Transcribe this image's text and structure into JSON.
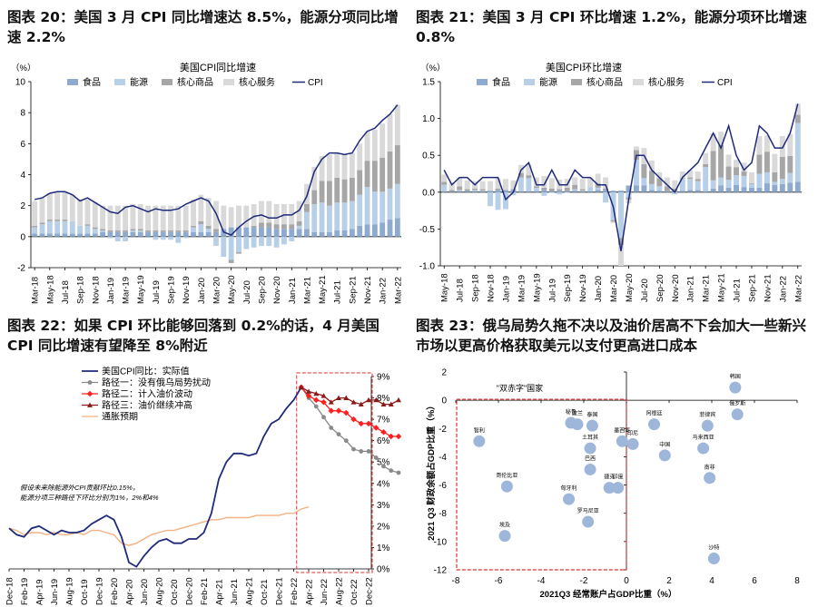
{
  "colors": {
    "food": "#8EAACF",
    "energy": "#B8CFE8",
    "core_goods": "#A6A6A6",
    "core_services": "#D9D9D9",
    "cpi": "#1F2A7A",
    "path1": "#8A8A8A",
    "path2": "#FF1F1F",
    "path3": "#8B1A1A",
    "expect": "#F4B183",
    "highlight": "#E03030",
    "dot": "#9DB6D9"
  },
  "months_a": [
    "Mar-18",
    "Apr-18",
    "May-18",
    "Jun-18",
    "Jul-18",
    "Aug-18",
    "Sep-18",
    "Oct-18",
    "Nov-18",
    "Dec-18",
    "Jan-19",
    "Feb-19",
    "Mar-19",
    "Apr-19",
    "May-19",
    "Jun-19",
    "Jul-19",
    "Aug-19",
    "Sep-19",
    "Oct-19",
    "Nov-19",
    "Dec-19",
    "Jan-20",
    "Feb-20",
    "Mar-20",
    "Apr-20",
    "May-20",
    "Jun-20",
    "Jul-20",
    "Aug-20",
    "Sep-20",
    "Oct-20",
    "Nov-20",
    "Dec-20",
    "Jan-21",
    "Feb-21",
    "Mar-21",
    "Apr-21",
    "May-21",
    "Jun-21",
    "Jul-21",
    "Aug-21",
    "Sep-21",
    "Oct-21",
    "Nov-21",
    "Dec-21",
    "Jan-22",
    "Feb-22",
    "Mar-22"
  ],
  "months_b": [
    "May-18",
    "Jun-18",
    "Jul-18",
    "Aug-18",
    "Sep-18",
    "Oct-18",
    "Nov-18",
    "Dec-18",
    "Jan-19",
    "Feb-19",
    "Mar-19",
    "Apr-19",
    "May-19",
    "Jun-19",
    "Jul-19",
    "Aug-19",
    "Sep-19",
    "Oct-19",
    "Nov-19",
    "Dec-19",
    "Jan-20",
    "Feb-20",
    "Mar-20",
    "Apr-20",
    "May-20",
    "Jun-20",
    "Jul-20",
    "Aug-20",
    "Sep-20",
    "Oct-20",
    "Nov-20",
    "Dec-20",
    "Jan-21",
    "Feb-21",
    "Mar-21",
    "Apr-21",
    "May-21",
    "Jun-21",
    "Jul-21",
    "Aug-21",
    "Sep-21",
    "Oct-21",
    "Nov-21",
    "Dec-21",
    "Jan-22",
    "Feb-22",
    "Mar-22"
  ],
  "months_c": [
    "Dec-18",
    "Jan-19",
    "Feb-19",
    "Mar-19",
    "Apr-19",
    "May-19",
    "Jun-19",
    "Jul-19",
    "Aug-19",
    "Sep-19",
    "Oct-19",
    "Nov-19",
    "Dec-19",
    "Jan-20",
    "Feb-20",
    "Mar-20",
    "Apr-20",
    "May-20",
    "Jun-20",
    "Jul-20",
    "Aug-20",
    "Sep-20",
    "Oct-20",
    "Nov-20",
    "Dec-20",
    "Jan-21",
    "Feb-21",
    "Mar-21",
    "Apr-21",
    "May-21",
    "Jun-21",
    "Jul-21",
    "Aug-21",
    "Sep-21",
    "Oct-21",
    "Nov-21",
    "Dec-21",
    "Jan-22",
    "Feb-22",
    "Mar-22",
    "Apr-22",
    "May-22",
    "Jun-22",
    "Jul-22",
    "Aug-22",
    "Sep-22",
    "Oct-22",
    "Nov-22",
    "Dec-22"
  ],
  "chart_data": [
    {
      "type": "bar",
      "id": "fig20",
      "fig_title": "图表 20：美国 3 月 CPI 同比增速达 8.5%，能源分项同比增速 2.2%",
      "title": "美国CPI同比增速",
      "unit": "（%）",
      "ylim": [
        -2,
        10
      ],
      "yticks": [
        -2,
        0,
        2,
        4,
        6,
        8,
        10
      ],
      "x_tick_labels": [
        "Mar-18",
        "May-18",
        "Jul-18",
        "Sep-18",
        "Nov-18",
        "Jan-19",
        "Mar-19",
        "May-19",
        "Jul-19",
        "Sep-19",
        "Nov-19",
        "Jan-20",
        "Mar-20",
        "May-20",
        "Jul-20",
        "Sep-20",
        "Nov-20",
        "Jan-21",
        "Mar-21",
        "May-21",
        "Jul-21",
        "Sep-21",
        "Nov-21",
        "Jan-22",
        "Mar-22"
      ],
      "legend": [
        "食品",
        "能源",
        "核心商品",
        "核心服务",
        "CPI"
      ],
      "series": [
        {
          "name": "食品",
          "values": [
            0.2,
            0.2,
            0.2,
            0.2,
            0.2,
            0.2,
            0.2,
            0.2,
            0.2,
            0.3,
            0.3,
            0.3,
            0.3,
            0.3,
            0.3,
            0.3,
            0.3,
            0.3,
            0.3,
            0.3,
            0.3,
            0.3,
            0.3,
            0.3,
            0.3,
            0.5,
            0.6,
            0.6,
            0.6,
            0.6,
            0.6,
            0.6,
            0.5,
            0.5,
            0.5,
            0.5,
            0.5,
            0.3,
            0.3,
            0.3,
            0.4,
            0.4,
            0.5,
            0.7,
            0.8,
            0.8,
            0.9,
            1.1,
            1.2
          ]
        },
        {
          "name": "能源",
          "values": [
            0.4,
            0.6,
            0.8,
            0.8,
            0.8,
            0.8,
            0.5,
            0.5,
            0.3,
            0.1,
            -0.1,
            -0.3,
            -0.3,
            0.1,
            0.1,
            0.0,
            -0.2,
            -0.2,
            -0.2,
            -0.4,
            -0.1,
            0.3,
            0.5,
            0.2,
            -0.6,
            -1.3,
            -1.5,
            -1.0,
            -0.8,
            -0.7,
            -0.6,
            -0.6,
            -0.7,
            -0.5,
            -0.3,
            0.2,
            1.1,
            1.8,
            1.9,
            1.7,
            1.8,
            1.8,
            1.8,
            2.0,
            2.4,
            2.1,
            2.0,
            2.0,
            2.2
          ]
        },
        {
          "name": "核心商品",
          "values": [
            0.1,
            0.1,
            0.1,
            0.1,
            0.1,
            0.0,
            0.0,
            0.1,
            0.1,
            0.1,
            0.1,
            0.1,
            0.1,
            0.1,
            0.1,
            0.1,
            0.1,
            0.1,
            0.1,
            0.1,
            0.1,
            0.1,
            0.2,
            0.2,
            0.2,
            0.0,
            -0.2,
            -0.1,
            0.0,
            0.1,
            0.3,
            0.3,
            0.3,
            0.3,
            0.3,
            0.3,
            0.5,
            0.9,
            1.4,
            1.6,
            1.6,
            1.5,
            1.5,
            1.6,
            1.7,
            2.0,
            2.2,
            2.4,
            2.5
          ]
        },
        {
          "name": "核心服务",
          "values": [
            1.6,
            1.6,
            1.7,
            1.8,
            1.8,
            1.7,
            1.7,
            1.6,
            1.6,
            1.5,
            1.6,
            1.6,
            1.6,
            1.6,
            1.6,
            1.6,
            1.6,
            1.6,
            1.6,
            1.6,
            1.6,
            1.7,
            1.7,
            1.8,
            1.8,
            1.5,
            1.3,
            1.4,
            1.4,
            1.4,
            1.4,
            1.4,
            1.3,
            1.3,
            1.3,
            1.3,
            1.3,
            1.5,
            1.6,
            1.7,
            1.6,
            1.6,
            1.6,
            1.7,
            1.9,
            2.0,
            2.2,
            2.4,
            2.6
          ]
        },
        {
          "name": "CPI",
          "values": [
            2.4,
            2.5,
            2.8,
            2.9,
            2.9,
            2.7,
            2.3,
            2.5,
            2.2,
            1.9,
            1.6,
            1.5,
            1.9,
            2.0,
            1.8,
            1.6,
            1.8,
            1.7,
            1.7,
            1.8,
            2.1,
            2.3,
            2.5,
            2.3,
            1.5,
            0.3,
            0.1,
            0.6,
            1.0,
            1.3,
            1.4,
            1.2,
            1.2,
            1.4,
            1.4,
            1.7,
            2.6,
            4.2,
            5.0,
            5.4,
            5.4,
            5.3,
            5.4,
            6.2,
            6.8,
            7.0,
            7.5,
            7.9,
            8.5
          ]
        }
      ]
    },
    {
      "type": "bar",
      "id": "fig21",
      "fig_title": "图表 21：美国 3 月 CPI 环比增速 1.2%，能源分项环比增速 0.8%",
      "title": "美国CPI环比增速",
      "unit": "（%）",
      "ylim": [
        -1.0,
        1.5
      ],
      "yticks": [
        -1.0,
        -0.5,
        0.0,
        0.5,
        1.0,
        1.5
      ],
      "x_tick_labels": [
        "May-18",
        "Jul-18",
        "Sep-18",
        "Nov-18",
        "Jan-19",
        "Mar-19",
        "May-19",
        "Jul-19",
        "Sep-19",
        "Nov-19",
        "Jan-20",
        "Mar-20",
        "May-20",
        "Jul-20",
        "Sep-20",
        "Nov-20",
        "Jan-21",
        "Mar-21",
        "May-21",
        "Jul-21",
        "Sep-21",
        "Nov-21",
        "Jan-22",
        "Mar-22"
      ],
      "legend": [
        "食品",
        "能源",
        "核心商品",
        "核心服务",
        "CPI"
      ],
      "series": [
        {
          "name": "食品",
          "values": [
            0.01,
            0.01,
            0.01,
            0.02,
            0.01,
            0.01,
            0.02,
            0.03,
            0.03,
            0.03,
            0.01,
            0.01,
            0.01,
            0.03,
            0.01,
            0.02,
            0.01,
            0.02,
            0.01,
            0.01,
            0.03,
            0.03,
            0.02,
            0.02,
            0.09,
            0.09,
            0.09,
            0.03,
            0.02,
            0.02,
            0.01,
            0.02,
            0.03,
            0.03,
            0.01,
            0.05,
            0.09,
            0.06,
            0.1,
            0.07,
            0.06,
            0.06,
            0.12,
            0.1,
            0.11,
            0.13,
            0.14
          ]
        },
        {
          "name": "能源",
          "values": [
            0.09,
            0.0,
            0.02,
            0.0,
            0.02,
            0.01,
            -0.19,
            -0.24,
            -0.23,
            -0.04,
            0.19,
            0.18,
            0.05,
            -0.05,
            -0.01,
            -0.03,
            -0.01,
            0.02,
            0.01,
            0.06,
            0.03,
            -0.14,
            -0.38,
            -0.62,
            -0.07,
            0.35,
            0.1,
            0.08,
            0.06,
            0.0,
            -0.03,
            0.16,
            0.15,
            0.12,
            0.33,
            0.11,
            0.11,
            0.11,
            0.13,
            0.15,
            0.05,
            0.19,
            0.15,
            0.04,
            0.07,
            0.13,
            0.8
          ]
        },
        {
          "name": "核心商品",
          "values": [
            0.04,
            0.02,
            0.05,
            0.02,
            0.02,
            0.02,
            0.0,
            0.02,
            0.0,
            0.01,
            0.06,
            0.04,
            0.02,
            0.03,
            0.04,
            0.02,
            0.05,
            0.06,
            0.02,
            0.0,
            0.06,
            0.02,
            -0.02,
            -0.1,
            -0.03,
            0.13,
            0.19,
            0.18,
            0.11,
            0.06,
            0.04,
            0.01,
            0.02,
            0.03,
            0.04,
            0.4,
            0.44,
            0.18,
            0.11,
            0.06,
            0.01,
            0.26,
            0.28,
            0.13,
            0.3,
            0.23,
            0.11
          ]
        },
        {
          "name": "核心服务",
          "values": [
            0.1,
            0.1,
            0.12,
            0.12,
            0.1,
            0.11,
            0.13,
            0.14,
            0.15,
            0.12,
            0.11,
            0.15,
            0.12,
            0.16,
            0.14,
            0.13,
            0.12,
            0.1,
            0.14,
            0.12,
            0.13,
            0.15,
            -0.02,
            -0.28,
            -0.05,
            0.05,
            0.22,
            0.14,
            0.08,
            0.12,
            0.11,
            0.09,
            0.1,
            0.1,
            0.15,
            0.24,
            0.18,
            0.16,
            0.1,
            0.12,
            0.15,
            0.25,
            0.22,
            0.25,
            0.28,
            0.3,
            0.15
          ]
        },
        {
          "name": "CPI",
          "values": [
            0.3,
            0.1,
            0.2,
            0.2,
            0.1,
            0.2,
            0.2,
            0.2,
            -0.1,
            0.0,
            0.3,
            0.4,
            0.1,
            0.1,
            0.3,
            0.1,
            0.1,
            0.3,
            0.2,
            0.2,
            0.1,
            0.1,
            -0.2,
            -0.8,
            -0.1,
            0.5,
            0.5,
            0.3,
            0.2,
            0.1,
            0.0,
            0.2,
            0.3,
            0.4,
            0.6,
            0.8,
            0.6,
            0.9,
            0.5,
            0.3,
            0.4,
            0.9,
            0.8,
            0.6,
            0.6,
            0.8,
            1.2
          ]
        }
      ]
    },
    {
      "type": "line",
      "id": "fig22",
      "fig_title": "图表 22：如果 CPI 环比能够回落到 0.2%的话，4 月美国 CPI 同比增速有望降至 8%附近",
      "ylim": [
        0,
        9
      ],
      "yticks": [
        "0%",
        "1%",
        "2%",
        "3%",
        "4%",
        "5%",
        "6%",
        "7%",
        "8%",
        "9%"
      ],
      "x_tick_labels": [
        "Dec-18",
        "Feb-19",
        "Apr-19",
        "Jun-19",
        "Aug-19",
        "Oct-19",
        "Dec-19",
        "Feb-20",
        "Apr-20",
        "Jun-20",
        "Aug-20",
        "Oct-20",
        "Dec-20",
        "Feb-21",
        "Apr-21",
        "Jun-21",
        "Aug-21",
        "Oct-21",
        "Dec-21",
        "Feb-22",
        "Apr-22",
        "Jun-22",
        "Aug-22",
        "Oct-22",
        "Dec-22"
      ],
      "legend": [
        "美国CPI同比：实际值",
        "路径一：没有俄乌局势扰动",
        "路径二：计入油价波动",
        "路径三：油价继续冲高",
        "通胀预期"
      ],
      "annotation": "假设未来除能源外CPI贡献环比0.15%，能源分项三种路径下环比分别为1%，2%和4%",
      "series": [
        {
          "name": "美国CPI同比：实际值",
          "values": [
            1.9,
            1.6,
            1.5,
            1.9,
            2.0,
            1.8,
            1.6,
            1.8,
            1.7,
            1.7,
            1.8,
            2.1,
            2.3,
            2.5,
            2.3,
            1.5,
            0.3,
            0.1,
            0.6,
            1.0,
            1.3,
            1.4,
            1.2,
            1.2,
            1.4,
            1.4,
            1.7,
            2.6,
            4.2,
            5.0,
            5.4,
            5.4,
            5.3,
            5.4,
            6.2,
            6.8,
            7.0,
            7.5,
            7.9,
            8.5
          ]
        },
        {
          "name": "路径一：没有俄乌局势扰动",
          "values": [
            8.5,
            8.0,
            7.6,
            7.1,
            6.6,
            6.3,
            6.0,
            5.6,
            5.5,
            5.5,
            5.2,
            4.8,
            4.6,
            4.5
          ]
        },
        {
          "name": "路径二：计入油价波动",
          "values": [
            8.5,
            8.1,
            7.9,
            7.8,
            7.4,
            7.4,
            7.3,
            7.0,
            6.8,
            6.8,
            6.6,
            6.4,
            6.2,
            6.2
          ]
        },
        {
          "name": "路径三：油价继续冲高",
          "values": [
            8.5,
            8.3,
            8.2,
            8.1,
            7.8,
            8.0,
            8.0,
            7.8,
            7.7,
            7.9,
            7.9,
            7.7,
            7.7,
            7.9
          ]
        },
        {
          "name": "通胀预期",
          "values": [
            1.9,
            1.8,
            1.6,
            1.7,
            1.7,
            1.6,
            1.7,
            1.6,
            1.6,
            1.7,
            1.6,
            1.8,
            1.8,
            1.7,
            1.6,
            1.2,
            1.1,
            1.2,
            1.4,
            1.6,
            1.7,
            1.8,
            1.8,
            1.9,
            2.0,
            2.1,
            2.2,
            2.3,
            2.3,
            2.4,
            2.4,
            2.4,
            2.4,
            2.5,
            2.5,
            2.5,
            2.5,
            2.6,
            2.6,
            2.8,
            2.9
          ]
        }
      ]
    },
    {
      "type": "scatter",
      "id": "fig23",
      "fig_title": "图表 23：俄乌局势久拖不决以及油价居高不下会加大一些新兴市场以更高价格获取美元以支付更高进口成本",
      "xlabel": "2021Q3 经常账户占GDP比重（%）",
      "ylabel": "2021 Q3 财政余额占GDP比重（%）",
      "xlim": [
        -8,
        8
      ],
      "ylim": [
        -12,
        2
      ],
      "xticks": [
        -8,
        -6,
        -4,
        -2,
        0,
        2,
        4,
        6,
        8
      ],
      "yticks": [
        -12,
        -10,
        -8,
        -6,
        -4,
        -2,
        0,
        2
      ],
      "box_label": "\"双赤字\"国家",
      "points": [
        {
          "label": "智利",
          "x": -6.9,
          "y": -2.9
        },
        {
          "label": "哥伦比亚",
          "x": -5.6,
          "y": -6.1
        },
        {
          "label": "埃及",
          "x": -5.7,
          "y": -9.6
        },
        {
          "label": "秘鲁",
          "x": -2.6,
          "y": -1.6
        },
        {
          "label": "波兰",
          "x": -2.3,
          "y": -1.7
        },
        {
          "label": "泰国",
          "x": -1.6,
          "y": -1.8
        },
        {
          "label": "土耳其",
          "x": -1.7,
          "y": -3.4
        },
        {
          "label": "匈牙利",
          "x": -2.7,
          "y": -7.0
        },
        {
          "label": "罗马尼亚",
          "x": -1.8,
          "y": -8.6
        },
        {
          "label": "巴西",
          "x": -1.7,
          "y": -4.9
        },
        {
          "label": "捷克",
          "x": -0.8,
          "y": -6.2
        },
        {
          "label": "印度",
          "x": -0.4,
          "y": -6.2
        },
        {
          "label": "墨西哥",
          "x": -0.2,
          "y": -2.9
        },
        {
          "label": "印尼",
          "x": 0.3,
          "y": -3.1
        },
        {
          "label": "阿根廷",
          "x": 1.3,
          "y": -1.7
        },
        {
          "label": "中国",
          "x": 1.8,
          "y": -3.9
        },
        {
          "label": "菲律宾",
          "x": 3.8,
          "y": -1.8
        },
        {
          "label": "马来西亚",
          "x": 3.6,
          "y": -3.4
        },
        {
          "label": "南非",
          "x": 3.9,
          "y": -5.5
        },
        {
          "label": "韩国",
          "x": 5.1,
          "y": 0.9
        },
        {
          "label": "俄罗斯",
          "x": 5.2,
          "y": -1.0
        },
        {
          "label": "沙特",
          "x": 4.1,
          "y": -11.2
        }
      ]
    }
  ]
}
